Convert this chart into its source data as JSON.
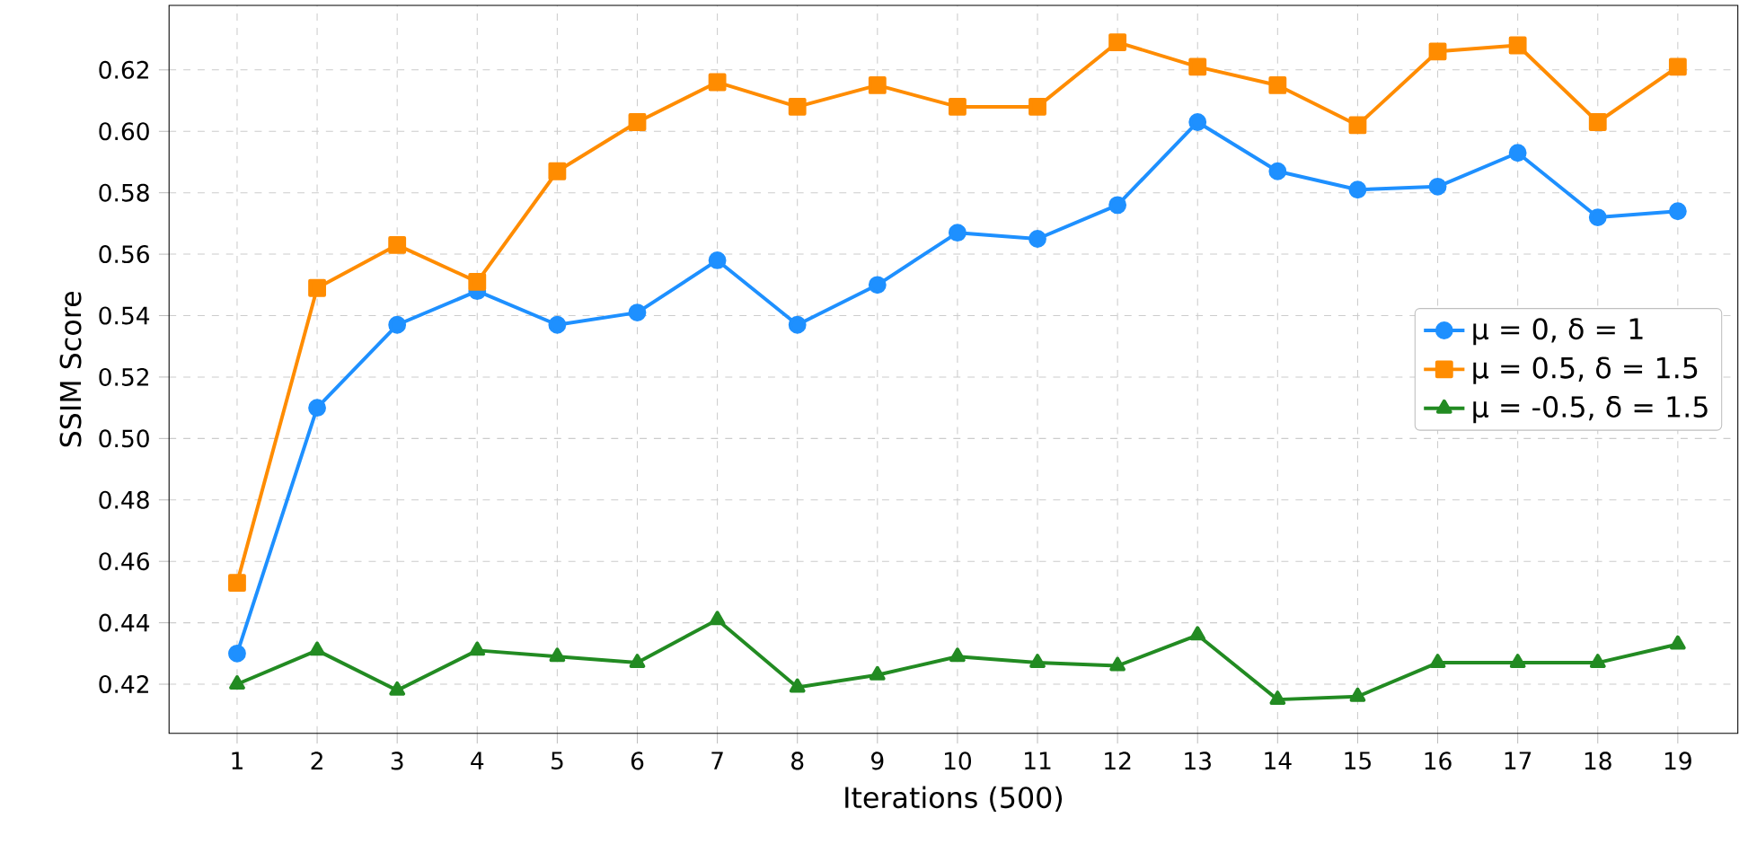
{
  "chart_data": {
    "type": "line",
    "xlabel": "Iterations (500)",
    "ylabel": "SSIM Score",
    "x": [
      1,
      2,
      3,
      4,
      5,
      6,
      7,
      8,
      9,
      10,
      11,
      12,
      13,
      14,
      15,
      16,
      17,
      18,
      19
    ],
    "series": [
      {
        "name": "μ = 0, δ = 1",
        "color": "#1e90ff",
        "marker": "circle",
        "values": [
          0.43,
          0.51,
          0.537,
          0.548,
          0.537,
          0.541,
          0.558,
          0.537,
          0.55,
          0.567,
          0.565,
          0.576,
          0.603,
          0.587,
          0.581,
          0.582,
          0.593,
          0.572,
          0.574
        ]
      },
      {
        "name": "μ = 0.5, δ = 1.5",
        "color": "#ff8c00",
        "marker": "square",
        "values": [
          0.453,
          0.549,
          0.563,
          0.551,
          0.587,
          0.603,
          0.616,
          0.608,
          0.615,
          0.608,
          0.608,
          0.629,
          0.621,
          0.615,
          0.602,
          0.626,
          0.628,
          0.603,
          0.621
        ]
      },
      {
        "name": "μ = -0.5, δ = 1.5",
        "color": "#228b22",
        "marker": "triangle",
        "values": [
          0.42,
          0.431,
          0.418,
          0.431,
          0.429,
          0.427,
          0.441,
          0.419,
          0.423,
          0.429,
          0.427,
          0.426,
          0.436,
          0.415,
          0.416,
          0.427,
          0.427,
          0.427,
          0.433
        ]
      }
    ],
    "xlim": [
      0.15,
      19.75
    ],
    "ylim": [
      0.404,
      0.641
    ],
    "xticks": [
      1,
      2,
      3,
      4,
      5,
      6,
      7,
      8,
      9,
      10,
      11,
      12,
      13,
      14,
      15,
      16,
      17,
      18,
      19
    ],
    "yticks": [
      0.42,
      0.44,
      0.46,
      0.48,
      {
        "value": 0.5,
        "label": "0.50"
      },
      0.52,
      0.54,
      0.56,
      0.58,
      {
        "value": 0.6,
        "label": "0.60"
      },
      0.62
    ],
    "grid": true,
    "legend": "right",
    "line_style": "solid"
  }
}
